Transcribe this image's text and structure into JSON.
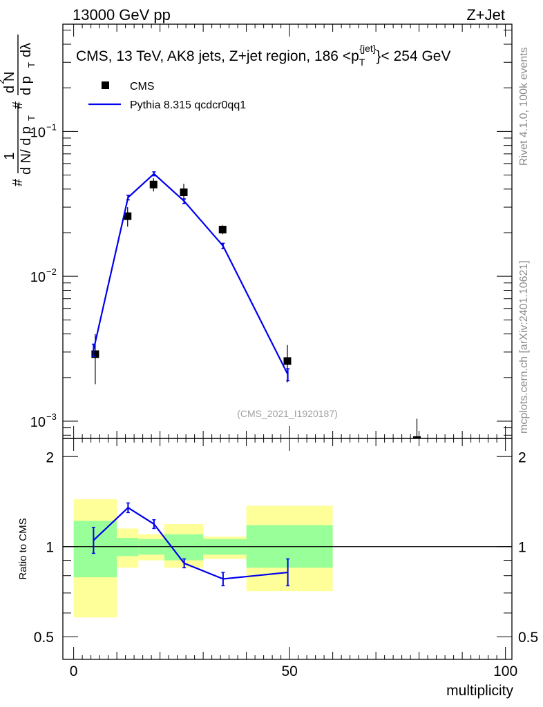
{
  "header": {
    "left": "13000 GeV pp",
    "right": "Z+Jet"
  },
  "side_text": {
    "rivet": "Rivet 4.1.0,  100k events",
    "mcplots": "mcplots.cern.ch [arXiv:2401.10621]"
  },
  "chart_data": [
    {
      "type": "scatter",
      "title": "CMS, 13 TeV, AK8 jets, Z+jet region, 186 <p_T^{jet}< 254 GeV",
      "title_parts": {
        "before": "CMS, 13 TeV, AK8 jets, Z+jet region, 186 <p",
        "sub": "T",
        "sup": "{jet}",
        "after": "}< 254 GeV"
      },
      "watermark": "(CMS_2021_I1920187)",
      "ylabel_parts": [
        "#",
        "1",
        "d N/ d p",
        "T",
        "#",
        "d",
        "N",
        "2",
        "d p",
        "T",
        "d",
        "λ"
      ],
      "ylabel": "# 1 / (dN/dp_T) # d^2N/(dp_T dλ)",
      "yscale": "log",
      "ylim": [
        0.00076,
        0.55
      ],
      "xlim": [
        -2.5,
        101.5
      ],
      "yticks": [
        0.001,
        0.01,
        0.1
      ],
      "ytick_labels": [
        {
          "base": "10",
          "exp": "−3"
        },
        {
          "base": "10",
          "exp": "−2"
        },
        {
          "base": "10",
          "exp": "−1"
        }
      ],
      "legend_position": "top-left",
      "series": [
        {
          "name": "CMS",
          "style": "markers",
          "color": "#000000",
          "x": [
            5,
            12.5,
            18.5,
            25.5,
            34.5,
            49.5,
            79.5
          ],
          "y": [
            0.0029,
            0.026,
            0.043,
            0.038,
            0.021,
            0.0026,
            0.00074
          ],
          "xerr_lo": [
            5,
            2.5,
            3.5,
            3.5,
            5.5,
            10.5,
            19.5
          ],
          "xerr_hi": [
            5,
            2.5,
            2.5,
            4.5,
            5.5,
            10.5,
            20.5
          ],
          "yerr_lo": [
            0.0011,
            0.004,
            0.0045,
            0.0055,
            0.0015,
            0.00075,
            0.0003
          ],
          "yerr_hi": [
            0.0011,
            0.004,
            0.0045,
            0.0055,
            0.0015,
            0.00075,
            0.0003
          ],
          "stat_rel_lo": [
            0.21,
            0.07,
            0.06,
            0.1,
            0.06,
            0.15
          ],
          "stat_rel_hi": [
            0.22,
            0.07,
            0.06,
            0.1,
            0.06,
            0.16
          ]
        },
        {
          "name": "Pythia 8.315 qcdcr0qq1",
          "style": "line",
          "color": "#0000ee",
          "x": [
            4.6,
            12.6,
            18.6,
            25.6,
            34.6,
            49.6
          ],
          "y": [
            0.0031,
            0.035,
            0.051,
            0.033,
            0.0162,
            0.0021
          ],
          "yerr_lo": [
            0.0003,
            0.0013,
            0.0016,
            0.0012,
            0.0007,
            0.0002
          ],
          "yerr_hi": [
            0.0003,
            0.0013,
            0.0016,
            0.0012,
            0.0007,
            0.0002
          ]
        }
      ]
    },
    {
      "type": "scatter",
      "ylabel": "Ratio to CMS",
      "xlabel": "multiplicity",
      "ylim": [
        0.42,
        2.3
      ],
      "xlim": [
        -2.5,
        101.5
      ],
      "yticks": [
        0.5,
        1,
        2
      ],
      "ytick_labels": [
        "0.5",
        "1",
        "2"
      ],
      "xticks": [
        0,
        50,
        100
      ],
      "xtick_labels": [
        "0",
        "50",
        "100"
      ],
      "reference_line": 1,
      "bands": [
        {
          "x0": 0,
          "x1": 10,
          "stat_lo": 0.79,
          "stat_hi": 1.22,
          "tot_lo": 0.58,
          "tot_hi": 1.44
        },
        {
          "x0": 10,
          "x1": 15,
          "stat_lo": 0.93,
          "stat_hi": 1.07,
          "tot_lo": 0.85,
          "tot_hi": 1.15
        },
        {
          "x0": 15,
          "x1": 21,
          "stat_lo": 0.94,
          "stat_hi": 1.06,
          "tot_lo": 0.9,
          "tot_hi": 1.1
        },
        {
          "x0": 21,
          "x1": 30,
          "stat_lo": 0.9,
          "stat_hi": 1.1,
          "tot_lo": 0.85,
          "tot_hi": 1.19
        },
        {
          "x0": 30,
          "x1": 40,
          "stat_lo": 0.94,
          "stat_hi": 1.06,
          "tot_lo": 0.91,
          "tot_hi": 1.08
        },
        {
          "x0": 40,
          "x1": 60,
          "stat_lo": 0.85,
          "stat_hi": 1.18,
          "tot_lo": 0.71,
          "tot_hi": 1.37
        }
      ],
      "series": [
        {
          "name": "Pythia 8.315 qcdcr0qq1",
          "color": "#0000ee",
          "x": [
            4.6,
            12.6,
            18.6,
            25.6,
            34.6,
            49.6
          ],
          "y": [
            1.05,
            1.35,
            1.19,
            0.88,
            0.78,
            0.82
          ],
          "yerr_lo": [
            0.1,
            0.05,
            0.04,
            0.03,
            0.04,
            0.08
          ],
          "yerr_hi": [
            0.11,
            0.05,
            0.04,
            0.03,
            0.04,
            0.09
          ]
        }
      ]
    }
  ]
}
